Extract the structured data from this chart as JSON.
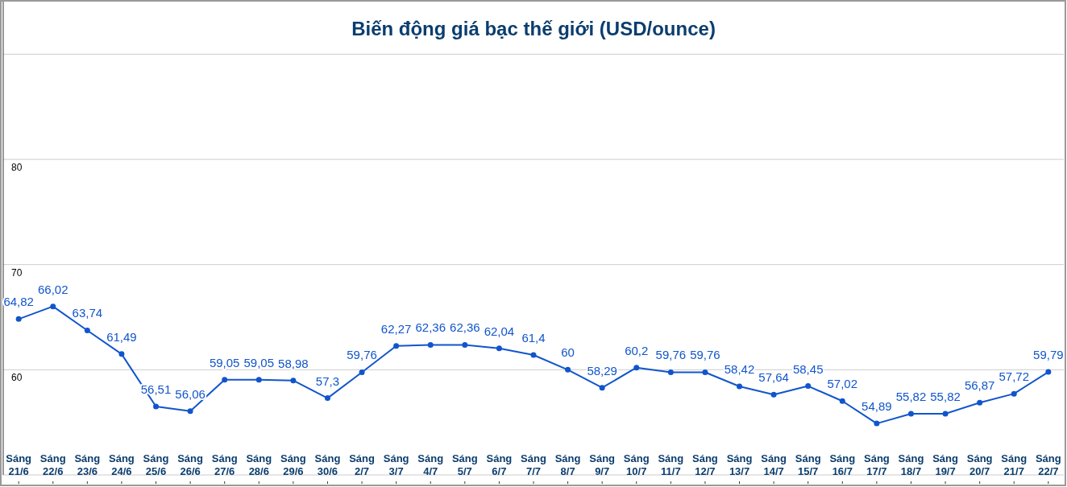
{
  "chart_data": {
    "type": "line",
    "title": "Biến động giá bạc thế giới (USD/ounce)",
    "categories": [
      "Sáng 21/6",
      "Sáng 22/6",
      "Sáng 23/6",
      "Sáng 24/6",
      "Sáng 25/6",
      "Sáng 26/6",
      "Sáng 27/6",
      "Sáng 28/6",
      "Sáng 29/6",
      "Sáng 30/6",
      "Sáng 2/7",
      "Sáng 3/7",
      "Sáng 4/7",
      "Sáng 5/7",
      "Sáng 6/7",
      "Sáng 7/7",
      "Sáng 8/7",
      "Sáng 9/7",
      "Sáng 10/7",
      "Sáng 11/7",
      "Sáng 12/7",
      "Sáng 13/7",
      "Sáng 14/7",
      "Sáng 15/7",
      "Sáng 16/7",
      "Sáng 17/7",
      "Sáng 18/7",
      "Sáng 19/7",
      "Sáng 20/7",
      "Sáng 21/7",
      "Sáng 22/7"
    ],
    "series": [
      {
        "color": "#1155cc",
        "values": [
          64.82,
          66.02,
          63.74,
          61.49,
          56.51,
          56.06,
          59.05,
          59.05,
          58.98,
          57.3,
          59.76,
          62.27,
          62.36,
          62.36,
          62.04,
          61.4,
          60,
          58.29,
          60.2,
          59.76,
          59.76,
          58.42,
          57.64,
          58.45,
          57.02,
          54.89,
          55.82,
          55.82,
          56.87,
          57.72,
          59.79
        ],
        "value_labels": [
          "64,82",
          "66,02",
          "63,74",
          "61,49",
          "56,51",
          "56,06",
          "59,05",
          "59,05",
          "58,98",
          "57,3",
          "59,76",
          "62,27",
          "62,36",
          "62,36",
          "62,04",
          "61,4",
          "60",
          "58,29",
          "60,2",
          "59,76",
          "59,76",
          "58,42",
          "57,64",
          "58,45",
          "57,02",
          "54,89",
          "55,82",
          "55,82",
          "56,87",
          "57,72",
          "59,79"
        ]
      }
    ],
    "ylim": [
      50,
      95
    ],
    "yticks": [
      {
        "value": 50,
        "label": null
      },
      60,
      70,
      80,
      {
        "value": 90,
        "label": null
      }
    ],
    "grid": "y",
    "marker": "circle",
    "line_style": "solid"
  }
}
